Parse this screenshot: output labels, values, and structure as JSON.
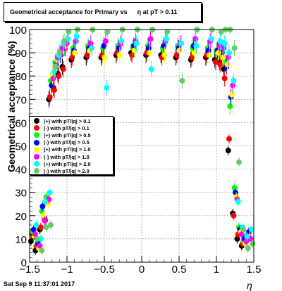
{
  "chart_data": {
    "type": "scatter",
    "title_parts": [
      "Geometrical acceptance for Primary vs",
      "η at pT > 0.11"
    ],
    "xlabel": "η",
    "ylabel": "Geometrical acceptance (%)",
    "xlim": [
      -1.5,
      1.5
    ],
    "ylim": [
      0,
      100
    ],
    "x_ticks": [
      -1.5,
      -1,
      -0.5,
      0,
      0.5,
      1,
      1.5
    ],
    "x_tick_labels": [
      "−1.5",
      "−1",
      "−0.5",
      "0",
      "0.5",
      "1",
      "1.5"
    ],
    "y_ticks": [
      0,
      10,
      20,
      30,
      40,
      50,
      60,
      70,
      80,
      90,
      100
    ],
    "y_tick_labels": [
      "0",
      "10",
      "20",
      "30",
      "40",
      "50",
      "60",
      "70",
      "80",
      "90",
      "100"
    ],
    "grid": true,
    "legend_position": "left-middle",
    "footer": "Sat Sep  9 11:37:01 2017",
    "series": [
      {
        "name": "(+) with pT/|q| > 0.1",
        "color": "#000000",
        "x": [
          -1.44,
          -1.38,
          -1.32,
          -1.26,
          -1.2,
          -1.14,
          -1.08,
          -1.02,
          -0.9,
          -0.7,
          -0.5,
          -0.3,
          -0.1,
          0.1,
          0.3,
          0.5,
          0.7,
          0.9,
          1.02,
          1.08,
          1.14,
          1.2,
          1.26,
          1.32,
          1.38,
          1.44
        ],
        "y": [
          9,
          5,
          14,
          19,
          70,
          75,
          81,
          84,
          87,
          88,
          88,
          89,
          90,
          89,
          89,
          88,
          87,
          88,
          87,
          86,
          83,
          48,
          21,
          10,
          7,
          9
        ]
      },
      {
        "name": "(-) with pT/|q| > 0.1",
        "color": "#ff0000",
        "x": [
          -1.44,
          -1.38,
          -1.32,
          -1.26,
          -1.2,
          -1.14,
          -1.08,
          -1.02,
          -0.9,
          -0.7,
          -0.5,
          -0.3,
          -0.1,
          0.1,
          0.3,
          0.5,
          0.7,
          0.9,
          1.02,
          1.08,
          1.14,
          1.2,
          1.26,
          1.32,
          1.38,
          1.44
        ],
        "y": [
          12,
          7,
          15,
          18,
          71,
          74,
          80,
          83,
          88,
          89,
          89,
          90,
          89,
          90,
          88,
          89,
          88,
          89,
          86,
          85,
          79,
          53,
          20,
          12,
          8,
          10
        ]
      },
      {
        "name": "(+) with pT/|q| > 0.5",
        "color": "#00ff00",
        "x": [
          -1.44,
          -1.38,
          -1.32,
          -1.26,
          -1.2,
          -1.14,
          -1.08,
          -1.02,
          -0.9,
          -0.7,
          -0.5,
          -0.3,
          -0.1,
          0.1,
          0.3,
          0.5,
          0.7,
          0.9,
          1.02,
          1.08,
          1.14,
          1.2,
          1.26,
          1.32,
          1.38,
          1.44
        ],
        "y": [
          13,
          8,
          22,
          28,
          78,
          86,
          90,
          92,
          92,
          93,
          92,
          93,
          92,
          93,
          92,
          93,
          92,
          92,
          91,
          90,
          86,
          67,
          32,
          15,
          9,
          12
        ]
      },
      {
        "name": "(-) with pT/|q| > 0.5",
        "color": "#0000ff",
        "x": [
          -1.44,
          -1.38,
          -1.32,
          -1.26,
          -1.2,
          -1.14,
          -1.08,
          -1.02,
          -0.9,
          -0.7,
          -0.5,
          -0.3,
          -0.1,
          0.1,
          0.3,
          0.5,
          0.7,
          0.9,
          1.02,
          1.08,
          1.14,
          1.2,
          1.26,
          1.32,
          1.38,
          1.44
        ],
        "y": [
          14,
          8,
          24,
          26,
          76,
          85,
          89,
          92,
          91,
          92,
          93,
          92,
          93,
          92,
          93,
          92,
          93,
          91,
          91,
          90,
          84,
          71,
          30,
          14,
          10,
          13
        ]
      },
      {
        "name": "(+) with pT/|q| > 1.0",
        "color": "#ffff00",
        "x": [
          -1.44,
          -1.38,
          -1.32,
          -1.26,
          -1.2,
          -1.14,
          -1.08,
          -1.02,
          -0.9,
          -0.7,
          -0.5,
          -0.3,
          -0.1,
          0.1,
          0.3,
          0.5,
          0.7,
          0.9,
          1.02,
          1.08,
          1.14,
          1.2,
          1.26,
          1.32,
          1.38,
          1.44
        ],
        "y": [
          11,
          6,
          20,
          25,
          80,
          87,
          91,
          93,
          90,
          91,
          88,
          89,
          91,
          90,
          89,
          91,
          90,
          89,
          90,
          88,
          85,
          72,
          28,
          13,
          8,
          11
        ]
      },
      {
        "name": "(-) with pT/|q| > 1.0",
        "color": "#ff00ff",
        "x": [
          -1.44,
          -1.38,
          -1.32,
          -1.26,
          -1.2,
          -1.14,
          -1.08,
          -1.02,
          -0.9,
          -0.7,
          -0.5,
          -0.3,
          -0.1,
          0.1,
          0.3,
          0.5,
          0.7,
          0.9,
          1.02,
          1.08,
          1.14,
          1.2,
          1.26,
          1.32,
          1.38,
          1.44
        ],
        "y": [
          12,
          7,
          18,
          27,
          79,
          88,
          92,
          94,
          95,
          94,
          95,
          94,
          95,
          96,
          95,
          94,
          96,
          95,
          93,
          92,
          88,
          76,
          27,
          12,
          9,
          10
        ]
      },
      {
        "name": "(+) with pT/|q| > 2.0",
        "color": "#00ffff",
        "x": [
          -1.44,
          -1.38,
          -1.32,
          -1.26,
          -1.2,
          -1.14,
          -1.08,
          -1.02,
          -0.9,
          -0.7,
          -0.5,
          -0.3,
          -0.1,
          0.1,
          0.3,
          0.5,
          0.7,
          0.9,
          1.02,
          1.08,
          1.14,
          1.2,
          1.26,
          1.32,
          1.38,
          1.44
        ],
        "y": [
          16,
          10,
          26,
          30,
          82,
          89,
          94,
          96,
          97,
          92,
          75,
          95,
          94,
          83,
          96,
          94,
          93,
          96,
          95,
          94,
          90,
          78,
          26,
          15,
          11,
          14
        ]
      },
      {
        "name": "(-) with pT/|q| > 2.0",
        "color": "#66cc66",
        "x": [
          -1.44,
          -1.38,
          -1.32,
          -1.26,
          -1.2,
          -1.14,
          -1.08,
          -1.02,
          -0.9,
          -0.7,
          -0.5,
          -0.3,
          -0.1,
          0.1,
          0.3,
          0.5,
          0.7,
          0.9,
          1.02,
          1.08,
          1.14,
          1.2,
          1.26,
          1.32,
          1.38,
          1.44
        ],
        "y": [
          10,
          5,
          15,
          16,
          84,
          90,
          95,
          99,
          100,
          100,
          99,
          100,
          100,
          100,
          99,
          78,
          100,
          100,
          99,
          100,
          100,
          92,
          43,
          14,
          6,
          8
        ]
      }
    ]
  }
}
